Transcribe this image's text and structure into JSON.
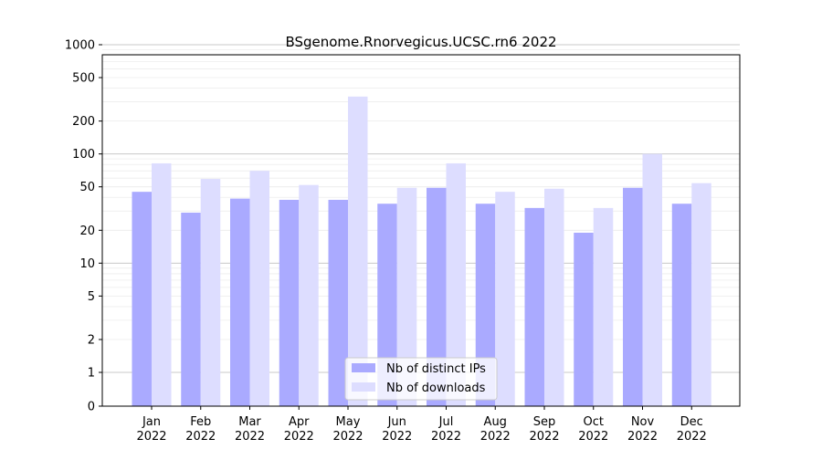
{
  "chart_data": {
    "type": "bar",
    "title": "BSgenome.Rnorvegicus.UCSC.rn6 2022",
    "xlabel": "",
    "ylabel": "",
    "y_scale": "symlog",
    "categories": [
      {
        "month": "Jan",
        "year": "2022"
      },
      {
        "month": "Feb",
        "year": "2022"
      },
      {
        "month": "Mar",
        "year": "2022"
      },
      {
        "month": "Apr",
        "year": "2022"
      },
      {
        "month": "May",
        "year": "2022"
      },
      {
        "month": "Jun",
        "year": "2022"
      },
      {
        "month": "Jul",
        "year": "2022"
      },
      {
        "month": "Aug",
        "year": "2022"
      },
      {
        "month": "Sep",
        "year": "2022"
      },
      {
        "month": "Oct",
        "year": "2022"
      },
      {
        "month": "Nov",
        "year": "2022"
      },
      {
        "month": "Dec",
        "year": "2022"
      }
    ],
    "series": [
      {
        "name": "Nb of distinct IPs",
        "color": "#aaaaff",
        "values": [
          45,
          29,
          39,
          38,
          38,
          35,
          49,
          35,
          32,
          19,
          49,
          35
        ]
      },
      {
        "name": "Nb of downloads",
        "color": "#ddddff",
        "values": [
          82,
          59,
          70,
          52,
          335,
          49,
          82,
          45,
          48,
          32,
          100,
          54
        ]
      }
    ],
    "y_ticks": [
      "0",
      "1",
      "2",
      "5",
      "10",
      "20",
      "50",
      "100",
      "200",
      "500",
      "1000"
    ],
    "ylim": [
      0,
      1500
    ],
    "grid": true,
    "legend_position": "bottom-center"
  }
}
